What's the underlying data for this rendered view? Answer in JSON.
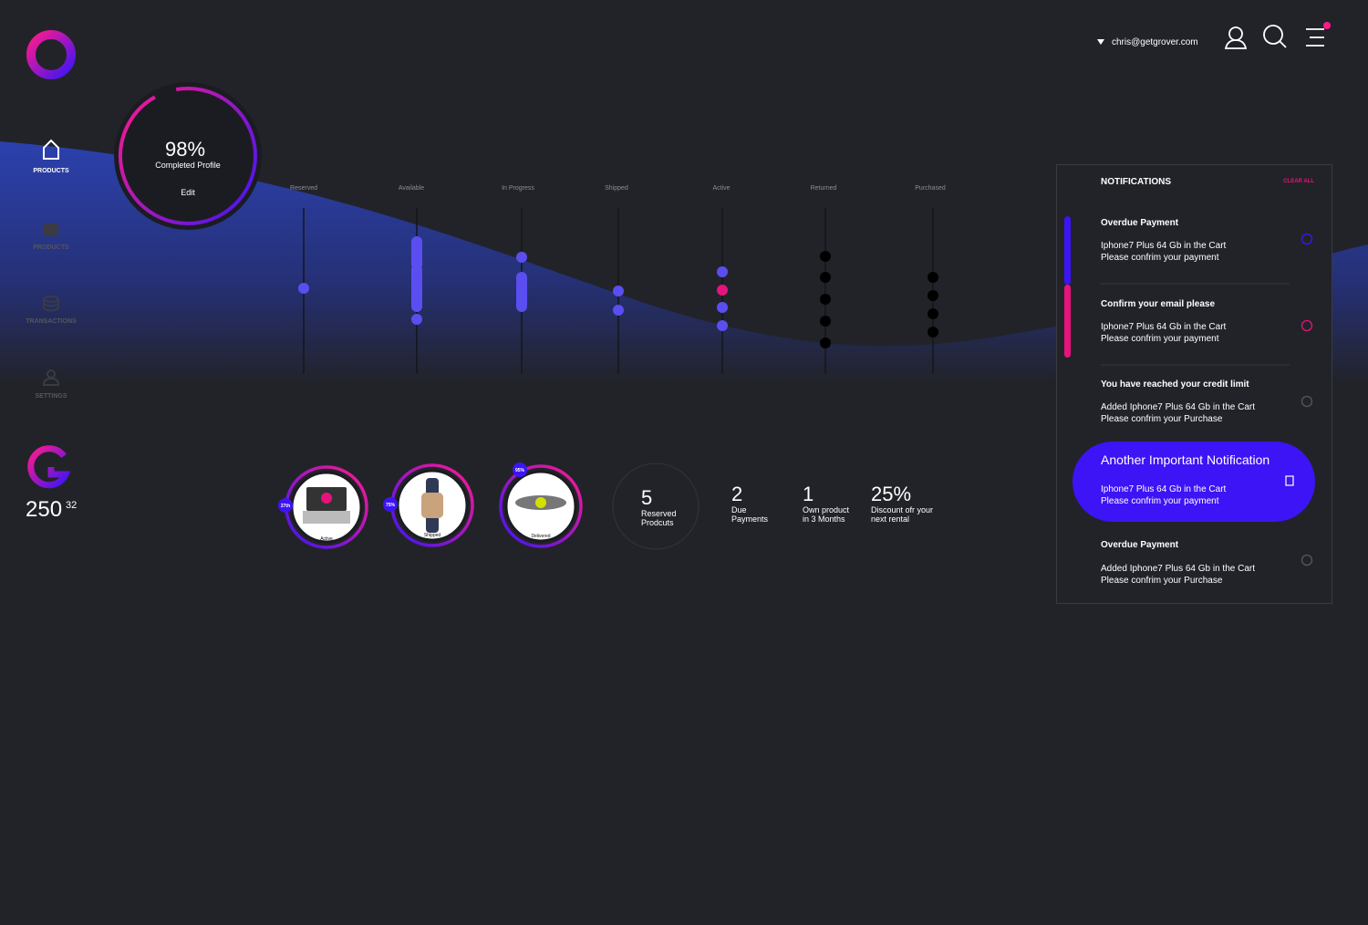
{
  "header": {
    "user_email": "chris@getgrover.com"
  },
  "sidebar": {
    "nav": [
      "PRODUCTS",
      "PRODUCTS",
      "TRANSACTIONS",
      "SETTINGS"
    ],
    "points": "250",
    "points_decimal": "32"
  },
  "profile": {
    "percent": "98%",
    "label": "Completed Profile",
    "action": "Edit"
  },
  "status_columns": [
    "Reserved",
    "Available",
    "In Progress",
    "Shipped",
    "Active",
    "Returned",
    "Purchased"
  ],
  "products": [
    {
      "badge": "27th",
      "status": "Active"
    },
    {
      "badge": "75%",
      "status": "Shipped"
    },
    {
      "badge": "95%",
      "status": "Delivered"
    }
  ],
  "stats": [
    {
      "value": "5",
      "label_lines": [
        "Reserved",
        "Prodcuts"
      ]
    },
    {
      "value": "2",
      "label_lines": [
        "Due",
        "Payments"
      ]
    },
    {
      "value": "1",
      "label_lines": [
        "Own product",
        "in 3 Months"
      ]
    },
    {
      "value": "25%",
      "label_lines": [
        "Discount ofr your",
        "next rental"
      ]
    }
  ],
  "notifications": {
    "title": "NOTIFICATIONS",
    "clear": "CLEAR ALL",
    "items": [
      {
        "title": "Overdue Payment",
        "lines": [
          "Iphone7 Plus 64 Gb in the Cart",
          "Please confrim your payment"
        ]
      },
      {
        "title": "Confirm your email please",
        "lines": [
          "Iphone7 Plus 64 Gb in the Cart",
          "Please confrim your payment"
        ]
      },
      {
        "title": "You have reached your credit limit",
        "lines": [
          "Added Iphone7 Plus 64 Gb in the Cart",
          "Please confrim your Purchase"
        ]
      },
      {
        "title": "Another Important Notification",
        "lines": [
          "Iphone7 Plus 64 Gb in the Cart",
          "Please confrim your payment"
        ]
      },
      {
        "title": "Overdue Payment",
        "lines": [
          "Added Iphone7 Plus 64 Gb in the Cart",
          "Please confrim your Purchase"
        ]
      }
    ]
  }
}
